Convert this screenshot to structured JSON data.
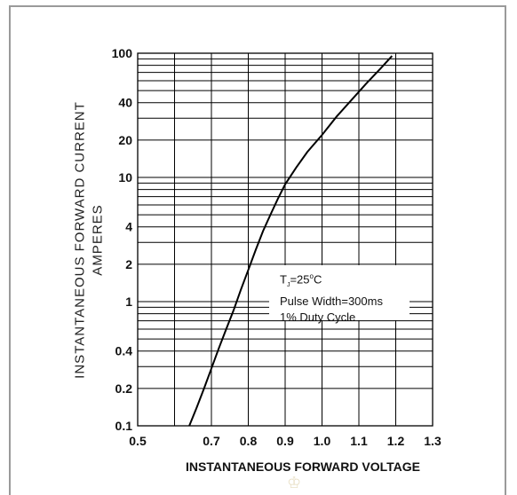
{
  "chart_data": {
    "type": "line",
    "title": "",
    "xlabel": "INSTANTANEOUS FORWARD VOLTAGE",
    "ylabel_line1": "INSTANTANEOUS FORWARD CURRENT",
    "ylabel_line2": "AMPERES",
    "x_scale": "linear",
    "y_scale": "log",
    "xlim": [
      0.5,
      1.3
    ],
    "ylim": [
      0.1,
      100
    ],
    "x_ticks": [
      "0.5",
      "0.7",
      "0.8",
      "0.9",
      "1.0",
      "1.1",
      "1.2",
      "1.3"
    ],
    "y_ticks": [
      "0.1",
      "0.2",
      "0.4",
      "1",
      "2",
      "4",
      "10",
      "20",
      "40",
      "100"
    ],
    "grid": true,
    "series": [
      {
        "x": [
          0.64,
          0.66,
          0.68,
          0.7,
          0.72,
          0.74,
          0.76,
          0.78,
          0.8,
          0.82,
          0.84,
          0.86,
          0.88,
          0.9,
          0.93,
          0.96,
          1.0,
          1.04,
          1.08,
          1.12,
          1.16,
          1.19
        ],
        "y": [
          0.1,
          0.14,
          0.2,
          0.29,
          0.42,
          0.6,
          0.85,
          1.25,
          1.8,
          2.6,
          3.7,
          5.0,
          6.7,
          8.8,
          12,
          16,
          22,
          31,
          42,
          57,
          76,
          95
        ]
      }
    ],
    "legend": {
      "line1_main": "T",
      "line1_sub": "J",
      "line1_rest": "=25",
      "line1_sup": "o",
      "line1_end": "C",
      "line2": "Pulse Width=300ms",
      "line3": "1% Duty Cycle",
      "placement": "bottom-right"
    }
  },
  "watermark": "♔"
}
